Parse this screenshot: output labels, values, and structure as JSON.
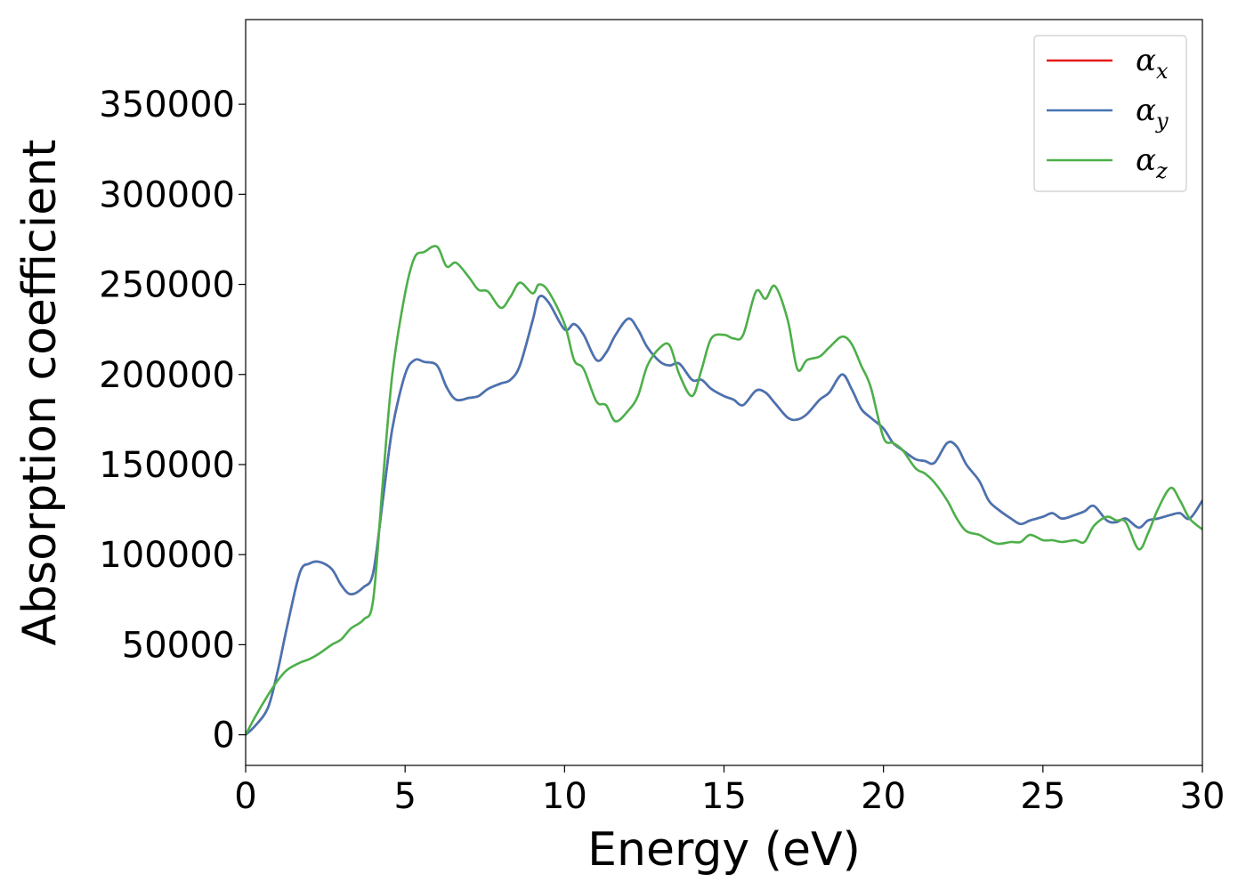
{
  "chart_data": {
    "type": "line",
    "xlabel": "Energy (eV)",
    "ylabel": "Absorption coefficient",
    "xlim": [
      0,
      30
    ],
    "ylim": [
      -17000,
      397000
    ],
    "xticks": [
      0,
      5,
      10,
      15,
      20,
      25,
      30
    ],
    "yticks": [
      0,
      50000,
      100000,
      150000,
      200000,
      250000,
      300000,
      350000
    ],
    "grid": false,
    "legend_position": "top-right",
    "series": [
      {
        "name": "x",
        "color": "#e41a1c",
        "x": [
          0,
          0.3,
          0.7,
          1.0,
          1.3,
          1.7,
          2.0,
          2.3,
          2.7,
          3.0,
          3.3,
          3.7,
          4.0,
          4.3,
          4.6,
          5.0,
          5.3,
          5.6,
          6.0,
          6.3,
          6.6,
          7.0,
          7.3,
          7.6,
          8.0,
          8.3,
          8.6,
          9.0,
          9.2,
          9.5,
          10.0,
          10.3,
          10.6,
          11.0,
          11.3,
          11.6,
          12.0,
          12.3,
          12.6,
          13.0,
          13.3,
          13.6,
          14.0,
          14.3,
          14.6,
          15.0,
          15.3,
          15.6,
          16.0,
          16.3,
          16.6,
          17.0,
          17.3,
          17.6,
          18.0,
          18.3,
          18.7,
          19.0,
          19.3,
          19.6,
          20.0,
          20.3,
          20.6,
          21.0,
          21.3,
          21.6,
          22.0,
          22.3,
          22.6,
          23.0,
          23.3,
          23.6,
          24.0,
          24.3,
          24.6,
          25.0,
          25.3,
          25.6,
          26.0,
          26.3,
          26.6,
          27.0,
          27.3,
          27.6,
          28.0,
          28.3,
          28.6,
          29.0,
          29.3,
          29.6,
          30.0
        ],
        "y": [
          0,
          5000,
          15000,
          35000,
          60000,
          90000,
          95000,
          96000,
          92000,
          83000,
          78000,
          82000,
          90000,
          130000,
          170000,
          200000,
          208000,
          207000,
          205000,
          193000,
          186000,
          187000,
          188000,
          192000,
          195000,
          197000,
          205000,
          230000,
          243000,
          240000,
          225000,
          228000,
          222000,
          208000,
          212000,
          222000,
          231000,
          225000,
          215000,
          207000,
          205000,
          206000,
          197000,
          197000,
          192000,
          188000,
          186000,
          183000,
          191000,
          190000,
          184000,
          176000,
          175000,
          178000,
          186000,
          190000,
          200000,
          192000,
          181000,
          176000,
          170000,
          162000,
          158000,
          153000,
          152000,
          151000,
          162000,
          160000,
          150000,
          141000,
          130000,
          125000,
          120000,
          117000,
          119000,
          121000,
          123000,
          120000,
          122000,
          124000,
          127000,
          119000,
          118000,
          120000,
          115000,
          119000,
          120000,
          122000,
          123000,
          120000,
          130000
        ]
      },
      {
        "name": "y",
        "color": "#4575b4",
        "x": [
          0,
          0.3,
          0.7,
          1.0,
          1.3,
          1.7,
          2.0,
          2.3,
          2.7,
          3.0,
          3.3,
          3.7,
          4.0,
          4.3,
          4.6,
          5.0,
          5.3,
          5.6,
          6.0,
          6.3,
          6.6,
          7.0,
          7.3,
          7.6,
          8.0,
          8.3,
          8.6,
          9.0,
          9.2,
          9.5,
          10.0,
          10.3,
          10.6,
          11.0,
          11.3,
          11.6,
          12.0,
          12.3,
          12.6,
          13.0,
          13.3,
          13.6,
          14.0,
          14.3,
          14.6,
          15.0,
          15.3,
          15.6,
          16.0,
          16.3,
          16.6,
          17.0,
          17.3,
          17.6,
          18.0,
          18.3,
          18.7,
          19.0,
          19.3,
          19.6,
          20.0,
          20.3,
          20.6,
          21.0,
          21.3,
          21.6,
          22.0,
          22.3,
          22.6,
          23.0,
          23.3,
          23.6,
          24.0,
          24.3,
          24.6,
          25.0,
          25.3,
          25.6,
          26.0,
          26.3,
          26.6,
          27.0,
          27.3,
          27.6,
          28.0,
          28.3,
          28.6,
          29.0,
          29.3,
          29.6,
          30.0
        ],
        "y": [
          0,
          5000,
          15000,
          35000,
          60000,
          90000,
          95000,
          96000,
          92000,
          83000,
          78000,
          82000,
          90000,
          130000,
          170000,
          200000,
          208000,
          207000,
          205000,
          193000,
          186000,
          187000,
          188000,
          192000,
          195000,
          197000,
          205000,
          230000,
          243000,
          240000,
          225000,
          228000,
          222000,
          208000,
          212000,
          222000,
          231000,
          225000,
          215000,
          207000,
          205000,
          206000,
          197000,
          197000,
          192000,
          188000,
          186000,
          183000,
          191000,
          190000,
          184000,
          176000,
          175000,
          178000,
          186000,
          190000,
          200000,
          192000,
          181000,
          176000,
          170000,
          162000,
          158000,
          153000,
          152000,
          151000,
          162000,
          160000,
          150000,
          141000,
          130000,
          125000,
          120000,
          117000,
          119000,
          121000,
          123000,
          120000,
          122000,
          124000,
          127000,
          119000,
          118000,
          120000,
          115000,
          119000,
          120000,
          122000,
          123000,
          120000,
          130000
        ]
      },
      {
        "name": "z",
        "color": "#4daf4a",
        "x": [
          0,
          0.3,
          0.7,
          1.0,
          1.3,
          1.7,
          2.0,
          2.3,
          2.7,
          3.0,
          3.3,
          3.7,
          4.0,
          4.3,
          4.6,
          5.0,
          5.3,
          5.6,
          6.0,
          6.3,
          6.6,
          7.0,
          7.3,
          7.6,
          8.0,
          8.3,
          8.6,
          9.0,
          9.2,
          9.5,
          10.0,
          10.3,
          10.6,
          11.0,
          11.3,
          11.6,
          12.0,
          12.3,
          12.6,
          13.0,
          13.3,
          13.6,
          14.0,
          14.3,
          14.6,
          15.0,
          15.3,
          15.6,
          16.0,
          16.3,
          16.6,
          17.0,
          17.3,
          17.6,
          18.0,
          18.3,
          18.7,
          19.0,
          19.3,
          19.6,
          20.0,
          20.3,
          20.6,
          21.0,
          21.3,
          21.6,
          22.0,
          22.3,
          22.6,
          23.0,
          23.3,
          23.6,
          24.0,
          24.3,
          24.6,
          25.0,
          25.3,
          25.6,
          26.0,
          26.3,
          26.6,
          27.0,
          27.3,
          27.6,
          28.0,
          28.3,
          28.6,
          29.0,
          29.3,
          29.6,
          30.0
        ],
        "y": [
          0,
          10000,
          22000,
          30000,
          36000,
          40000,
          42000,
          45000,
          50000,
          53000,
          59000,
          64000,
          75000,
          140000,
          200000,
          245000,
          265000,
          268000,
          271000,
          260000,
          262000,
          254000,
          247000,
          246000,
          237000,
          243000,
          251000,
          245000,
          250000,
          246000,
          228000,
          208000,
          203000,
          185000,
          183000,
          174000,
          180000,
          188000,
          205000,
          215000,
          216000,
          200000,
          188000,
          203000,
          220000,
          222000,
          220000,
          222000,
          246000,
          242000,
          249000,
          230000,
          203000,
          208000,
          210000,
          215000,
          221000,
          217000,
          205000,
          193000,
          165000,
          162000,
          158000,
          148000,
          145000,
          140000,
          130000,
          120000,
          113000,
          111000,
          108000,
          106000,
          107000,
          107000,
          111000,
          108000,
          108000,
          107000,
          108000,
          107000,
          116000,
          121000,
          119000,
          118000,
          103000,
          112000,
          125000,
          137000,
          130000,
          120000,
          114000
        ]
      }
    ]
  }
}
